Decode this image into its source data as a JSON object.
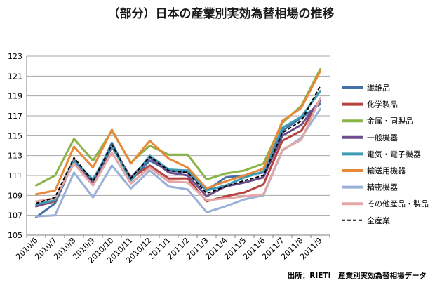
{
  "chart_data": {
    "type": "line",
    "title": "（部分）日本の産業別実効為替相場の推移",
    "source": "出所：RIETI　産業別実効為替相場データ",
    "categories": [
      "2010/6",
      "2010/7",
      "2010/8",
      "2010/9",
      "2010/10",
      "2010/11",
      "2010/12",
      "2011/1",
      "2011/2",
      "2011/3",
      "2011/4",
      "2011/5",
      "2011/6",
      "2011/7",
      "2011/8",
      "2011/9"
    ],
    "ylim": [
      105,
      123
    ],
    "yticks": [
      105,
      107,
      109,
      111,
      113,
      115,
      117,
      119,
      121,
      123
    ],
    "grid": true,
    "legend_position": "right",
    "series": [
      {
        "name": "繊維品",
        "color": "#4472a8",
        "width": 3,
        "dash": false,
        "values": [
          106.8,
          108.2,
          112.5,
          110.2,
          114.3,
          110.5,
          112.5,
          111.5,
          111.3,
          109.5,
          110.8,
          111.0,
          111.3,
          115.5,
          116.8,
          118.2
        ]
      },
      {
        "name": "化学製品",
        "color": "#b5423e",
        "width": 3,
        "dash": false,
        "values": [
          107.9,
          108.4,
          112.6,
          110.1,
          113.9,
          110.7,
          112.0,
          110.7,
          110.7,
          108.4,
          108.9,
          109.3,
          110.1,
          114.5,
          115.5,
          118.6
        ]
      },
      {
        "name": "金属・同製品",
        "color": "#8ab446",
        "width": 3,
        "dash": false,
        "values": [
          110.0,
          111.0,
          114.7,
          112.5,
          115.5,
          112.3,
          114.0,
          113.1,
          113.1,
          110.6,
          111.2,
          111.5,
          112.2,
          116.3,
          118.0,
          121.7
        ]
      },
      {
        "name": "一般機器",
        "color": "#6d4e8d",
        "width": 3,
        "dash": false,
        "values": [
          107.9,
          108.5,
          112.3,
          110.2,
          113.9,
          110.8,
          112.8,
          111.3,
          111.0,
          108.9,
          109.9,
          110.3,
          110.8,
          115.0,
          116.1,
          118.6
        ]
      },
      {
        "name": "電気・電子機器",
        "color": "#3e9bb4",
        "width": 3,
        "dash": false,
        "values": [
          108.1,
          108.5,
          112.5,
          110.6,
          114.0,
          110.5,
          113.0,
          111.6,
          111.5,
          109.5,
          110.0,
          110.8,
          111.4,
          115.8,
          116.9,
          119.5
        ]
      },
      {
        "name": "輸送用機器",
        "color": "#e8893a",
        "width": 3,
        "dash": false,
        "values": [
          109.1,
          109.5,
          113.9,
          111.8,
          115.6,
          112.2,
          114.5,
          112.7,
          111.8,
          109.7,
          110.4,
          111.0,
          111.7,
          116.5,
          117.8,
          121.5
        ]
      },
      {
        "name": "精密機器",
        "color": "#9ab0d6",
        "width": 3,
        "dash": false,
        "values": [
          106.9,
          107.0,
          111.3,
          108.8,
          112.0,
          109.7,
          111.5,
          109.9,
          109.6,
          107.3,
          107.9,
          108.6,
          109.0,
          113.5,
          114.8,
          117.7
        ]
      },
      {
        "name": "その他産品・製品",
        "color": "#e3a6a6",
        "width": 3,
        "dash": false,
        "values": [
          108.4,
          108.7,
          112.2,
          110.0,
          113.3,
          110.2,
          111.8,
          110.4,
          110.3,
          108.5,
          108.7,
          108.9,
          109.1,
          113.6,
          114.6,
          118.8
        ]
      },
      {
        "name": "全産業",
        "color": "#000000",
        "width": 2,
        "dash": true,
        "values": [
          108.2,
          108.8,
          112.8,
          110.4,
          114.1,
          110.7,
          112.9,
          111.5,
          111.3,
          109.2,
          109.9,
          110.5,
          111.0,
          115.3,
          116.5,
          120.0
        ]
      }
    ]
  }
}
